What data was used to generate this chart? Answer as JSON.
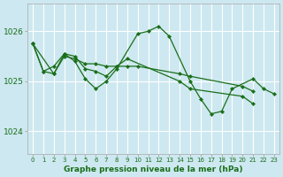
{
  "bg_color": "#cde8f0",
  "grid_color": "#ffffff",
  "line_color": "#1a6e1a",
  "marker_color": "#1a6e1a",
  "xlabel": "Graphe pression niveau de la mer (hPa)",
  "xlabel_color": "#1a6e1a",
  "ylabel_ticks": [
    1024,
    1025,
    1026
  ],
  "xlim": [
    -0.5,
    23.5
  ],
  "ylim": [
    1023.55,
    1026.55
  ],
  "series": [
    {
      "x": [
        0,
        1,
        2,
        3,
        4,
        5,
        6,
        7,
        8,
        10,
        11,
        12,
        13,
        15,
        16,
        17,
        18,
        19,
        21,
        22,
        23
      ],
      "y": [
        1025.75,
        1025.2,
        1025.15,
        1025.55,
        1025.4,
        1025.05,
        1024.85,
        1025.0,
        1025.25,
        1025.95,
        1026.0,
        1026.1,
        1025.9,
        1025.0,
        1024.65,
        1024.35,
        1024.4,
        1024.85,
        1025.05,
        1024.85,
        1024.75
      ]
    },
    {
      "x": [
        0,
        1,
        2,
        3,
        4,
        5,
        6,
        7,
        8,
        9,
        14,
        15,
        20,
        21
      ],
      "y": [
        1025.75,
        1025.2,
        1025.3,
        1025.55,
        1025.5,
        1025.25,
        1025.2,
        1025.1,
        1025.3,
        1025.45,
        1025.0,
        1024.85,
        1024.7,
        1024.55
      ]
    },
    {
      "x": [
        0,
        2,
        3,
        4,
        5,
        6,
        7,
        8,
        9,
        10,
        14,
        15,
        20,
        21
      ],
      "y": [
        1025.75,
        1025.15,
        1025.5,
        1025.45,
        1025.35,
        1025.35,
        1025.3,
        1025.3,
        1025.3,
        1025.3,
        1025.15,
        1025.1,
        1024.9,
        1024.8
      ]
    }
  ],
  "xtick_labels": [
    "0",
    "1",
    "2",
    "3",
    "4",
    "5",
    "6",
    "7",
    "8",
    "9",
    "10",
    "11",
    "12",
    "13",
    "14",
    "15",
    "16",
    "17",
    "18",
    "19",
    "20",
    "21",
    "22",
    "23"
  ]
}
